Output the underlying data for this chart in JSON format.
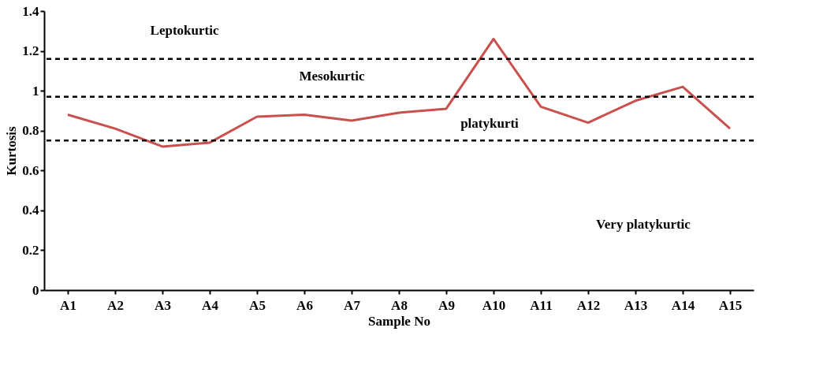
{
  "chart_data": {
    "type": "line",
    "xlabel": "Sample No",
    "ylabel": "Kurtosis",
    "categories": [
      "A1",
      "A2",
      "A3",
      "A4",
      "A5",
      "A6",
      "A7",
      "A8",
      "A9",
      "A10",
      "A11",
      "A12",
      "A13",
      "A14",
      "A15"
    ],
    "series": [
      {
        "color": "#c9504d",
        "values": [
          0.88,
          0.81,
          0.72,
          0.74,
          0.87,
          0.88,
          0.85,
          0.89,
          0.91,
          1.26,
          0.92,
          0.84,
          0.95,
          1.02,
          0.81
        ]
      }
    ],
    "ylim": [
      0,
      1.4
    ],
    "yticks": [
      0,
      0.2,
      0.4,
      0.6,
      0.8,
      1,
      1.2,
      1.4
    ],
    "ref_lines": [
      {
        "axis": "y",
        "value": 1.16,
        "color": "#000000",
        "line_style": "dashed"
      },
      {
        "axis": "y",
        "value": 0.97,
        "color": "#000000",
        "line_style": "dashed"
      },
      {
        "axis": "y",
        "value": 0.75,
        "color": "#000000",
        "line_style": "dashed"
      }
    ],
    "annotations": [
      "Leptokurtic",
      "Mesokurtic",
      "platykurti",
      "Very platykurtic"
    ],
    "grid": false,
    "marker": "none",
    "line_style": "solid"
  }
}
